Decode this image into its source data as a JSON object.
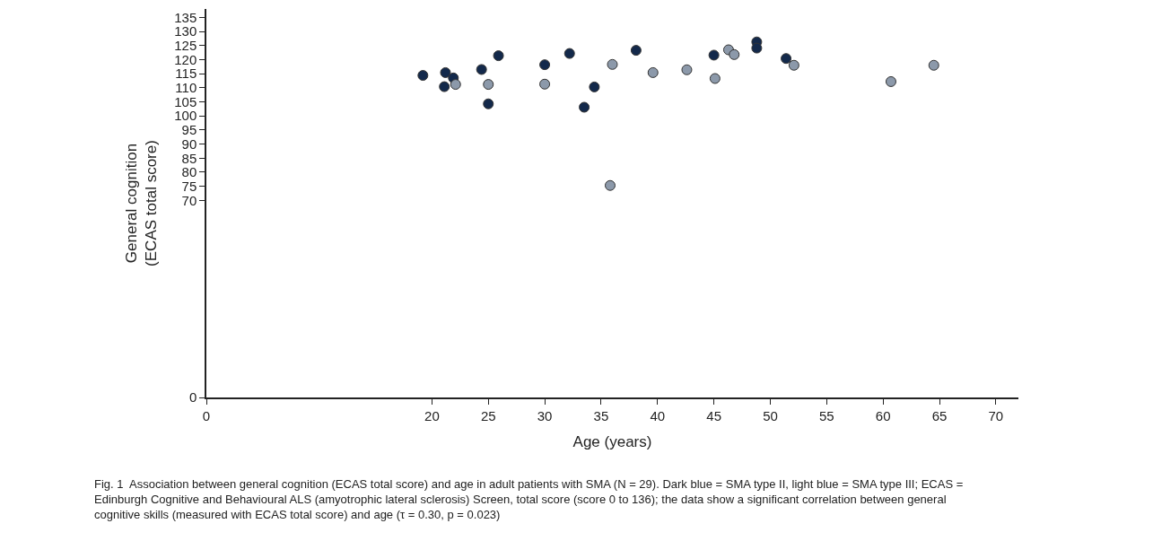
{
  "chart_data": {
    "type": "scatter",
    "xlabel": "Age (years)",
    "ylabel": "General cognition\n(ECAS total score)",
    "series": [
      {
        "color": "#13294b",
        "x": [
          19.2,
          21.2,
          21.1,
          21.9,
          24.4,
          25.0,
          25.9,
          30.0,
          32.2,
          33.5,
          34.4,
          38.1,
          45.0,
          48.8,
          48.8,
          51.4
        ],
        "values": [
          114.4,
          115.4,
          110.4,
          113.5,
          116.5,
          104.3,
          121.4,
          118.2,
          122.2,
          103.1,
          110.3,
          123.3,
          121.6,
          126.3,
          124.1,
          120.4
        ]
      },
      {
        "color": "#8c99aa",
        "x": [
          22.1,
          25.0,
          30.0,
          36.0,
          35.8,
          39.6,
          42.6,
          45.1,
          46.3,
          46.8,
          52.1,
          60.7,
          64.5
        ],
        "values": [
          111.2,
          111.2,
          111.3,
          118.3,
          75.3,
          115.4,
          116.4,
          113.3,
          123.5,
          121.8,
          118.0,
          112.2,
          118.0
        ]
      }
    ],
    "xlim": [
      0,
      72
    ],
    "xticks": [
      0,
      20,
      25,
      30,
      35,
      40,
      45,
      50,
      55,
      60,
      65,
      70
    ],
    "ylim": [
      0,
      138
    ],
    "yticks": [
      0,
      70,
      75,
      80,
      85,
      90,
      95,
      100,
      105,
      110,
      115,
      120,
      125,
      130,
      135
    ],
    "marker": "circle",
    "annotations": [
      "Fig. 1  Association between general cognition (ECAS total score) and age in adult patients with SMA (N = 29). Dark blue = SMA type II, light blue = SMA type III; ECAS = Edinburgh Cognitive and Behavioural ALS (amyotrophic lateral sclerosis) Screen, total score (score 0 to 136); the data show a significant correlation between general cognitive skills (measured with ECAS total score) and age (τ = 0.30, p = 0.023)"
    ]
  }
}
